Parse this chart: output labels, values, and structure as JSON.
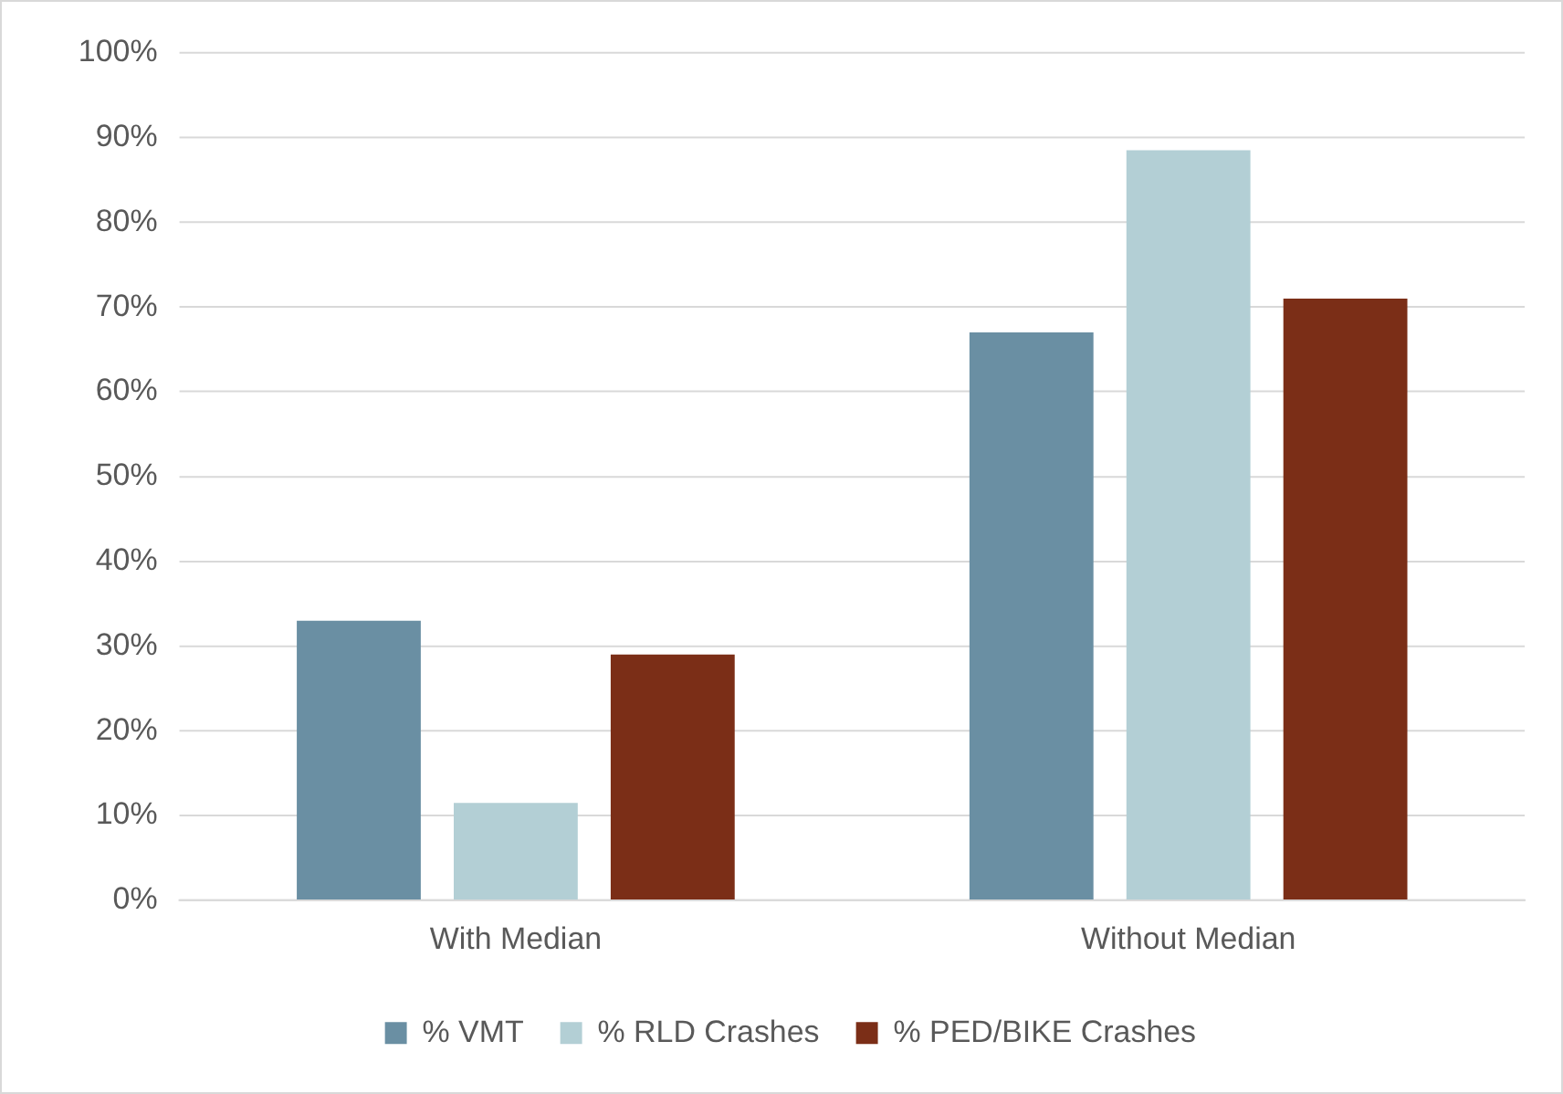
{
  "chart_data": {
    "type": "bar",
    "categories": [
      "With Median",
      "Without Median"
    ],
    "series": [
      {
        "name": "% VMT",
        "color": "#6a8fa3",
        "values": [
          33,
          67
        ]
      },
      {
        "name": "% RLD Crashes",
        "color": "#b3cfd5",
        "values": [
          11.5,
          88.5
        ]
      },
      {
        "name": "% PED/BIKE Crashes",
        "color": "#7b2e17",
        "values": [
          29,
          71
        ]
      }
    ],
    "ylim": [
      0,
      100
    ],
    "yticks": [
      {
        "value": 0,
        "label": "0%"
      },
      {
        "value": 10,
        "label": "10%"
      },
      {
        "value": 20,
        "label": "20%"
      },
      {
        "value": 30,
        "label": "30%"
      },
      {
        "value": 40,
        "label": "40%"
      },
      {
        "value": 50,
        "label": "50%"
      },
      {
        "value": 60,
        "label": "60%"
      },
      {
        "value": 70,
        "label": "70%"
      },
      {
        "value": 80,
        "label": "80%"
      },
      {
        "value": 90,
        "label": "90%"
      },
      {
        "value": 100,
        "label": "100%"
      }
    ],
    "grid": "y",
    "legend": "bottom"
  }
}
